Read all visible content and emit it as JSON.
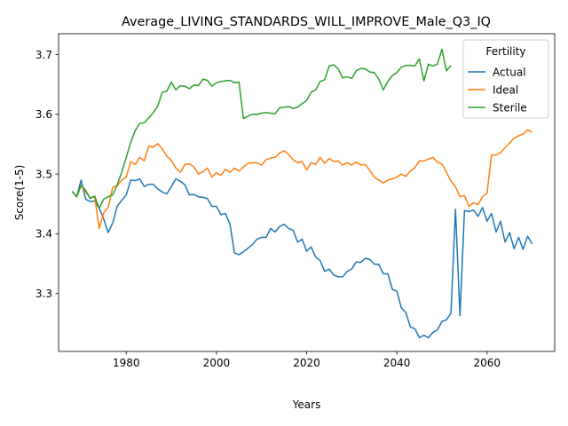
{
  "chart_data": {
    "type": "line",
    "title": "Average_LIVING_STANDARDS_WILL_IMPROVE_Male_Q3_IQ",
    "xlabel": "Years",
    "ylabel": "Score(1-5)",
    "xlim": [
      1965,
      2075
    ],
    "ylim": [
      3.203,
      3.735
    ],
    "xticks": [
      1980,
      2000,
      2020,
      2040,
      2060
    ],
    "yticks": [
      3.3,
      3.4,
      3.5,
      3.6,
      3.7
    ],
    "grid": false,
    "legend": {
      "title": "Fertility",
      "placement": "top-right"
    },
    "series": [
      {
        "name": "Actual",
        "color": "#1f77b4",
        "points": [
          [
            1968,
            3.471
          ],
          [
            1969,
            3.462
          ],
          [
            1970,
            3.49
          ],
          [
            1971,
            3.458
          ],
          [
            1972,
            3.454
          ],
          [
            1973,
            3.455
          ],
          [
            1974,
            3.443
          ],
          [
            1975,
            3.425
          ],
          [
            1976,
            3.402
          ],
          [
            1977,
            3.418
          ],
          [
            1978,
            3.446
          ],
          [
            1979,
            3.456
          ],
          [
            1980,
            3.465
          ],
          [
            1981,
            3.49
          ],
          [
            1982,
            3.489
          ],
          [
            1983,
            3.492
          ],
          [
            1984,
            3.479
          ],
          [
            1985,
            3.483
          ],
          [
            1986,
            3.483
          ],
          [
            1987,
            3.475
          ],
          [
            1988,
            3.47
          ],
          [
            1989,
            3.467
          ],
          [
            1990,
            3.479
          ],
          [
            1991,
            3.492
          ],
          [
            1992,
            3.488
          ],
          [
            1993,
            3.482
          ],
          [
            1994,
            3.465
          ],
          [
            1995,
            3.466
          ],
          [
            1996,
            3.462
          ],
          [
            1997,
            3.461
          ],
          [
            1998,
            3.459
          ],
          [
            1999,
            3.446
          ],
          [
            2000,
            3.446
          ],
          [
            2001,
            3.432
          ],
          [
            2002,
            3.434
          ],
          [
            2003,
            3.416
          ],
          [
            2004,
            3.368
          ],
          [
            2005,
            3.365
          ],
          [
            2006,
            3.37
          ],
          [
            2007,
            3.376
          ],
          [
            2008,
            3.382
          ],
          [
            2009,
            3.391
          ],
          [
            2010,
            3.394
          ],
          [
            2011,
            3.394
          ],
          [
            2012,
            3.409
          ],
          [
            2013,
            3.403
          ],
          [
            2014,
            3.412
          ],
          [
            2015,
            3.416
          ],
          [
            2016,
            3.409
          ],
          [
            2017,
            3.406
          ],
          [
            2018,
            3.386
          ],
          [
            2019,
            3.391
          ],
          [
            2020,
            3.371
          ],
          [
            2021,
            3.378
          ],
          [
            2022,
            3.361
          ],
          [
            2023,
            3.355
          ],
          [
            2024,
            3.337
          ],
          [
            2025,
            3.341
          ],
          [
            2026,
            3.331
          ],
          [
            2027,
            3.328
          ],
          [
            2028,
            3.328
          ],
          [
            2029,
            3.337
          ],
          [
            2030,
            3.341
          ],
          [
            2031,
            3.353
          ],
          [
            2032,
            3.352
          ],
          [
            2033,
            3.359
          ],
          [
            2034,
            3.357
          ],
          [
            2035,
            3.349
          ],
          [
            2036,
            3.349
          ],
          [
            2037,
            3.333
          ],
          [
            2038,
            3.333
          ],
          [
            2039,
            3.307
          ],
          [
            2040,
            3.304
          ],
          [
            2041,
            3.276
          ],
          [
            2042,
            3.268
          ],
          [
            2043,
            3.244
          ],
          [
            2044,
            3.241
          ],
          [
            2045,
            3.226
          ],
          [
            2046,
            3.23
          ],
          [
            2047,
            3.226
          ],
          [
            2048,
            3.235
          ],
          [
            2049,
            3.239
          ],
          [
            2050,
            3.253
          ],
          [
            2051,
            3.256
          ],
          [
            2052,
            3.267
          ],
          [
            2053,
            3.441
          ],
          [
            2054,
            3.263
          ],
          [
            2055,
            3.439
          ],
          [
            2056,
            3.437
          ],
          [
            2057,
            3.44
          ],
          [
            2058,
            3.429
          ],
          [
            2059,
            3.444
          ],
          [
            2060,
            3.421
          ],
          [
            2061,
            3.434
          ],
          [
            2062,
            3.403
          ],
          [
            2063,
            3.421
          ],
          [
            2064,
            3.386
          ],
          [
            2065,
            3.402
          ],
          [
            2066,
            3.375
          ],
          [
            2067,
            3.394
          ],
          [
            2068,
            3.374
          ],
          [
            2069,
            3.396
          ],
          [
            2070,
            3.383
          ]
        ]
      },
      {
        "name": "Ideal",
        "color": "#ff7f0e",
        "points": [
          [
            1968,
            3.471
          ],
          [
            1969,
            3.462
          ],
          [
            1970,
            3.481
          ],
          [
            1971,
            3.47
          ],
          [
            1972,
            3.46
          ],
          [
            1973,
            3.463
          ],
          [
            1974,
            3.409
          ],
          [
            1975,
            3.435
          ],
          [
            1976,
            3.444
          ],
          [
            1977,
            3.478
          ],
          [
            1978,
            3.48
          ],
          [
            1979,
            3.49
          ],
          [
            1980,
            3.495
          ],
          [
            1981,
            3.521
          ],
          [
            1982,
            3.516
          ],
          [
            1983,
            3.528
          ],
          [
            1984,
            3.522
          ],
          [
            1985,
            3.547
          ],
          [
            1986,
            3.545
          ],
          [
            1987,
            3.551
          ],
          [
            1988,
            3.542
          ],
          [
            1989,
            3.53
          ],
          [
            1990,
            3.523
          ],
          [
            1991,
            3.51
          ],
          [
            1992,
            3.503
          ],
          [
            1993,
            3.516
          ],
          [
            1994,
            3.517
          ],
          [
            1995,
            3.512
          ],
          [
            1996,
            3.5
          ],
          [
            1997,
            3.504
          ],
          [
            1998,
            3.51
          ],
          [
            1999,
            3.495
          ],
          [
            2000,
            3.502
          ],
          [
            2001,
            3.498
          ],
          [
            2002,
            3.508
          ],
          [
            2003,
            3.503
          ],
          [
            2004,
            3.51
          ],
          [
            2005,
            3.505
          ],
          [
            2006,
            3.512
          ],
          [
            2007,
            3.518
          ],
          [
            2008,
            3.519
          ],
          [
            2009,
            3.519
          ],
          [
            2010,
            3.515
          ],
          [
            2011,
            3.524
          ],
          [
            2012,
            3.527
          ],
          [
            2013,
            3.528
          ],
          [
            2014,
            3.535
          ],
          [
            2015,
            3.539
          ],
          [
            2016,
            3.533
          ],
          [
            2017,
            3.524
          ],
          [
            2018,
            3.519
          ],
          [
            2019,
            3.521
          ],
          [
            2020,
            3.507
          ],
          [
            2021,
            3.519
          ],
          [
            2022,
            3.516
          ],
          [
            2023,
            3.528
          ],
          [
            2024,
            3.518
          ],
          [
            2025,
            3.526
          ],
          [
            2026,
            3.521
          ],
          [
            2027,
            3.522
          ],
          [
            2028,
            3.515
          ],
          [
            2029,
            3.519
          ],
          [
            2030,
            3.515
          ],
          [
            2031,
            3.52
          ],
          [
            2032,
            3.515
          ],
          [
            2033,
            3.516
          ],
          [
            2034,
            3.506
          ],
          [
            2035,
            3.495
          ],
          [
            2036,
            3.49
          ],
          [
            2037,
            3.485
          ],
          [
            2038,
            3.49
          ],
          [
            2039,
            3.492
          ],
          [
            2040,
            3.495
          ],
          [
            2041,
            3.5
          ],
          [
            2042,
            3.496
          ],
          [
            2043,
            3.505
          ],
          [
            2044,
            3.511
          ],
          [
            2045,
            3.522
          ],
          [
            2046,
            3.522
          ],
          [
            2047,
            3.525
          ],
          [
            2048,
            3.528
          ],
          [
            2049,
            3.52
          ],
          [
            2050,
            3.517
          ],
          [
            2051,
            3.503
          ],
          [
            2052,
            3.488
          ],
          [
            2053,
            3.479
          ],
          [
            2054,
            3.462
          ],
          [
            2055,
            3.464
          ],
          [
            2056,
            3.446
          ],
          [
            2057,
            3.452
          ],
          [
            2058,
            3.449
          ],
          [
            2059,
            3.462
          ],
          [
            2060,
            3.468
          ],
          [
            2061,
            3.532
          ],
          [
            2062,
            3.532
          ],
          [
            2063,
            3.536
          ],
          [
            2064,
            3.544
          ],
          [
            2065,
            3.552
          ],
          [
            2066,
            3.56
          ],
          [
            2067,
            3.564
          ],
          [
            2068,
            3.567
          ],
          [
            2069,
            3.574
          ],
          [
            2070,
            3.57
          ]
        ]
      },
      {
        "name": "Sterile",
        "color": "#2ca02c",
        "points": [
          [
            1968,
            3.471
          ],
          [
            1969,
            3.462
          ],
          [
            1970,
            3.481
          ],
          [
            1971,
            3.473
          ],
          [
            1972,
            3.459
          ],
          [
            1973,
            3.463
          ],
          [
            1974,
            3.443
          ],
          [
            1975,
            3.458
          ],
          [
            1976,
            3.462
          ],
          [
            1977,
            3.465
          ],
          [
            1978,
            3.482
          ],
          [
            1979,
            3.503
          ],
          [
            1980,
            3.528
          ],
          [
            1981,
            3.553
          ],
          [
            1982,
            3.573
          ],
          [
            1983,
            3.585
          ],
          [
            1984,
            3.586
          ],
          [
            1985,
            3.594
          ],
          [
            1986,
            3.603
          ],
          [
            1987,
            3.614
          ],
          [
            1988,
            3.637
          ],
          [
            1989,
            3.639
          ],
          [
            1990,
            3.654
          ],
          [
            1991,
            3.641
          ],
          [
            1992,
            3.648
          ],
          [
            1993,
            3.647
          ],
          [
            1994,
            3.643
          ],
          [
            1995,
            3.649
          ],
          [
            1996,
            3.648
          ],
          [
            1997,
            3.659
          ],
          [
            1998,
            3.657
          ],
          [
            1999,
            3.647
          ],
          [
            2000,
            3.653
          ],
          [
            2001,
            3.655
          ],
          [
            2002,
            3.656
          ],
          [
            2003,
            3.657
          ],
          [
            2004,
            3.653
          ],
          [
            2005,
            3.654
          ],
          [
            2006,
            3.593
          ],
          [
            2007,
            3.597
          ],
          [
            2008,
            3.6
          ],
          [
            2009,
            3.6
          ],
          [
            2010,
            3.602
          ],
          [
            2011,
            3.603
          ],
          [
            2012,
            3.602
          ],
          [
            2013,
            3.601
          ],
          [
            2014,
            3.611
          ],
          [
            2015,
            3.612
          ],
          [
            2016,
            3.613
          ],
          [
            2017,
            3.61
          ],
          [
            2018,
            3.612
          ],
          [
            2019,
            3.618
          ],
          [
            2020,
            3.623
          ],
          [
            2021,
            3.637
          ],
          [
            2022,
            3.641
          ],
          [
            2023,
            3.655
          ],
          [
            2024,
            3.658
          ],
          [
            2025,
            3.681
          ],
          [
            2026,
            3.683
          ],
          [
            2027,
            3.676
          ],
          [
            2028,
            3.661
          ],
          [
            2029,
            3.663
          ],
          [
            2030,
            3.66
          ],
          [
            2031,
            3.673
          ],
          [
            2032,
            3.677
          ],
          [
            2033,
            3.676
          ],
          [
            2034,
            3.671
          ],
          [
            2035,
            3.67
          ],
          [
            2036,
            3.659
          ],
          [
            2037,
            3.641
          ],
          [
            2038,
            3.655
          ],
          [
            2039,
            3.665
          ],
          [
            2040,
            3.67
          ],
          [
            2041,
            3.679
          ],
          [
            2042,
            3.682
          ],
          [
            2043,
            3.682
          ],
          [
            2044,
            3.681
          ],
          [
            2045,
            3.693
          ],
          [
            2046,
            3.656
          ],
          [
            2047,
            3.684
          ],
          [
            2048,
            3.681
          ],
          [
            2049,
            3.684
          ],
          [
            2050,
            3.709
          ],
          [
            2051,
            3.673
          ],
          [
            2052,
            3.682
          ]
        ]
      }
    ]
  }
}
